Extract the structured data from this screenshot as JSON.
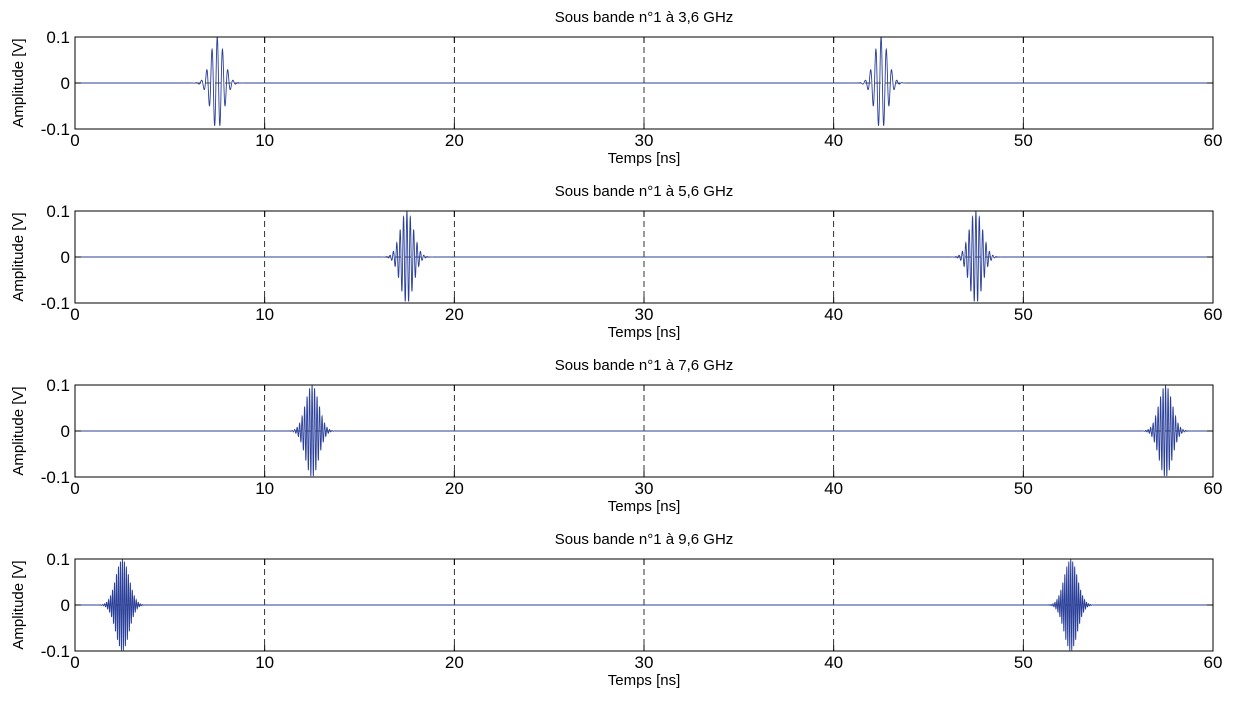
{
  "chart_data": [
    {
      "type": "line",
      "title": "Sous bande n°1 à 3,6 GHz",
      "xlabel": "Temps [ns]",
      "ylabel": "Amplitude [V]",
      "xlim": [
        0,
        60
      ],
      "ylim": [
        -0.1,
        0.1
      ],
      "xticks": [
        "0",
        "10",
        "20",
        "30",
        "40",
        "50",
        "60"
      ],
      "yticks": [
        "-0.1",
        "0",
        "0.1"
      ],
      "grid": true,
      "series": [
        {
          "pulses": [
            {
              "center": 7.5,
              "amplitude": 0.1,
              "width": 0.35
            },
            {
              "center": 42.5,
              "amplitude": 0.1,
              "width": 0.35
            }
          ],
          "frequency": 3.6
        }
      ]
    },
    {
      "type": "line",
      "title": "Sous bande n°1 à 5,6 GHz",
      "xlabel": "Temps [ns]",
      "ylabel": "Amplitude [V]",
      "xlim": [
        0,
        60
      ],
      "ylim": [
        -0.1,
        0.1
      ],
      "xticks": [
        "0",
        "10",
        "20",
        "30",
        "40",
        "50",
        "60"
      ],
      "yticks": [
        "-0.1",
        "0",
        "0.1"
      ],
      "grid": true,
      "series": [
        {
          "pulses": [
            {
              "center": 17.5,
              "amplitude": 0.1,
              "width": 0.35
            },
            {
              "center": 47.5,
              "amplitude": 0.1,
              "width": 0.35
            }
          ],
          "frequency": 5.6
        }
      ]
    },
    {
      "type": "line",
      "title": "Sous bande n°1 à 7,6 GHz",
      "xlabel": "Temps [ns]",
      "ylabel": "Amplitude [V]",
      "xlim": [
        0,
        60
      ],
      "ylim": [
        -0.1,
        0.1
      ],
      "xticks": [
        "0",
        "10",
        "20",
        "30",
        "40",
        "50",
        "60"
      ],
      "yticks": [
        "-0.1",
        "0",
        "0.1"
      ],
      "grid": true,
      "series": [
        {
          "pulses": [
            {
              "center": 12.5,
              "amplitude": 0.1,
              "width": 0.35
            },
            {
              "center": 57.5,
              "amplitude": 0.1,
              "width": 0.35
            }
          ],
          "frequency": 7.6
        }
      ]
    },
    {
      "type": "line",
      "title": "Sous bande n°1 à 9,6 GHz",
      "xlabel": "Temps [ns]",
      "ylabel": "Amplitude [V]",
      "xlim": [
        0,
        60
      ],
      "ylim": [
        -0.1,
        0.1
      ],
      "xticks": [
        "0",
        "10",
        "20",
        "30",
        "40",
        "50",
        "60"
      ],
      "yticks": [
        "-0.1",
        "0",
        "0.1"
      ],
      "grid": true,
      "series": [
        {
          "pulses": [
            {
              "center": 2.5,
              "amplitude": 0.1,
              "width": 0.35
            },
            {
              "center": 52.5,
              "amplitude": 0.1,
              "width": 0.35
            }
          ],
          "frequency": 9.6
        }
      ]
    }
  ],
  "style": {
    "line_color": "#2a3f99",
    "axis_color": "#000000",
    "grid_color": "#000000",
    "background": "#ffffff"
  }
}
